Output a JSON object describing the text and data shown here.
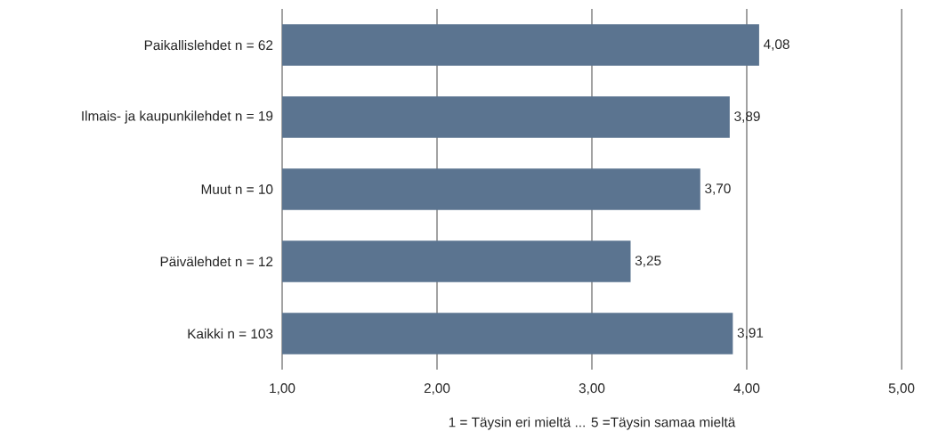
{
  "chart_data": {
    "type": "bar",
    "orientation": "horizontal",
    "xlabel": "1 = Täysin eri mieltä ... 5 =Täysin samaa mieltä",
    "categories": [
      "Paikallislehdet n = 62",
      "Ilmais- ja kaupunkilehdet n = 19",
      "Muut n = 10",
      "Päivälehdet n = 12",
      "Kaikki n = 103"
    ],
    "values": [
      4.08,
      3.89,
      3.7,
      3.25,
      3.91
    ],
    "value_labels": [
      "4,08",
      "3,89",
      "3,70",
      "3,25",
      "3,91"
    ],
    "color": "#5b7490",
    "xlim": [
      1,
      5
    ],
    "xticks": [
      {
        "value": 1,
        "label": "1,00"
      },
      {
        "value": 2,
        "label": "2,00"
      },
      {
        "value": 3,
        "label": "3,00"
      },
      {
        "value": 4,
        "label": "4,00"
      },
      {
        "value": 5,
        "label": "5,00"
      }
    ],
    "grid": "x"
  }
}
